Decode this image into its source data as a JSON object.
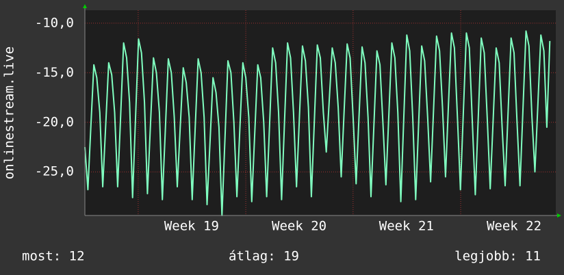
{
  "chart_data": {
    "type": "line",
    "y_label": "onlinestream.live",
    "color": "#80ffc0",
    "values": [
      -22.5,
      -26.8,
      -20.5,
      -14.2,
      -15.5,
      -19.0,
      -26.5,
      -20.2,
      -14.0,
      -15.2,
      -19.0,
      -26.5,
      -19.3,
      -12.0,
      -13.5,
      -18.0,
      -27.6,
      -19.6,
      -11.6,
      -13.0,
      -18.0,
      -27.2,
      -20.3,
      -13.5,
      -15.0,
      -19.0,
      -27.8,
      -20.7,
      -13.6,
      -15.0,
      -19.5,
      -26.5,
      -20.5,
      -14.5,
      -16.0,
      -19.5,
      -27.8,
      -20.7,
      -13.6,
      -15.0,
      -19.5,
      -28.3,
      -21.9,
      -15.5,
      -17.0,
      -20.5,
      -29.4,
      -21.6,
      -13.8,
      -15.0,
      -20.0,
      -27.5,
      -20.7,
      -14.0,
      -15.5,
      -19.5,
      -28.0,
      -21.1,
      -14.2,
      -15.5,
      -20.0,
      -27.5,
      -20.0,
      -12.5,
      -14.0,
      -19.0,
      -27.8,
      -19.9,
      -12.0,
      -13.5,
      -19.0,
      -26.5,
      -19.4,
      -12.3,
      -13.8,
      -18.5,
      -27.5,
      -19.8,
      -12.2,
      -13.5,
      -19.0,
      -23.0,
      -17.7,
      -12.5,
      -14.0,
      -18.5,
      -25.5,
      -18.8,
      -12.1,
      -13.5,
      -19.5,
      -26.2,
      -19.3,
      -12.4,
      -14.0,
      -19.5,
      -27.5,
      -20.1,
      -12.8,
      -14.2,
      -20.0,
      -26.3,
      -19.1,
      -12.0,
      -13.5,
      -19.0,
      -28.0,
      -19.6,
      -11.2,
      -12.8,
      -19.5,
      -27.8,
      -20.0,
      -12.3,
      -13.8,
      -19.5,
      -26.0,
      -18.6,
      -11.3,
      -12.8,
      -18.5,
      -25.5,
      -18.2,
      -11.0,
      -12.5,
      -19.5,
      -26.8,
      -18.9,
      -11.0,
      -12.5,
      -20.0,
      -27.3,
      -19.4,
      -11.5,
      -13.0,
      -19.5,
      -26.7,
      -19.6,
      -12.5,
      -14.0,
      -20.5,
      -26.4,
      -19.0,
      -11.5,
      -13.0,
      -20.0,
      -26.4,
      -18.6,
      -10.8,
      -12.3,
      -19.5,
      -25.0,
      -18.1,
      -11.2,
      -12.8,
      -20.5,
      -11.8
    ],
    "xlim": [
      0,
      158
    ],
    "xticks": [
      {
        "value": 35.8,
        "label": "Week 19"
      },
      {
        "value": 71.9,
        "label": "Week 20"
      },
      {
        "value": 107.9,
        "label": "Week 21"
      },
      {
        "value": 144.0,
        "label": "Week 22"
      }
    ],
    "ylim": [
      -29.4,
      -8.7
    ],
    "yticks": [
      {
        "value": -10,
        "label": "-10,0"
      },
      {
        "value": -15,
        "label": "-15,0"
      },
      {
        "value": -20,
        "label": "-20,0"
      },
      {
        "value": -25,
        "label": "-25,0"
      }
    ],
    "grid": true,
    "stats": [
      "most: 12",
      "átlag: 19",
      "legjobb: 11"
    ]
  }
}
